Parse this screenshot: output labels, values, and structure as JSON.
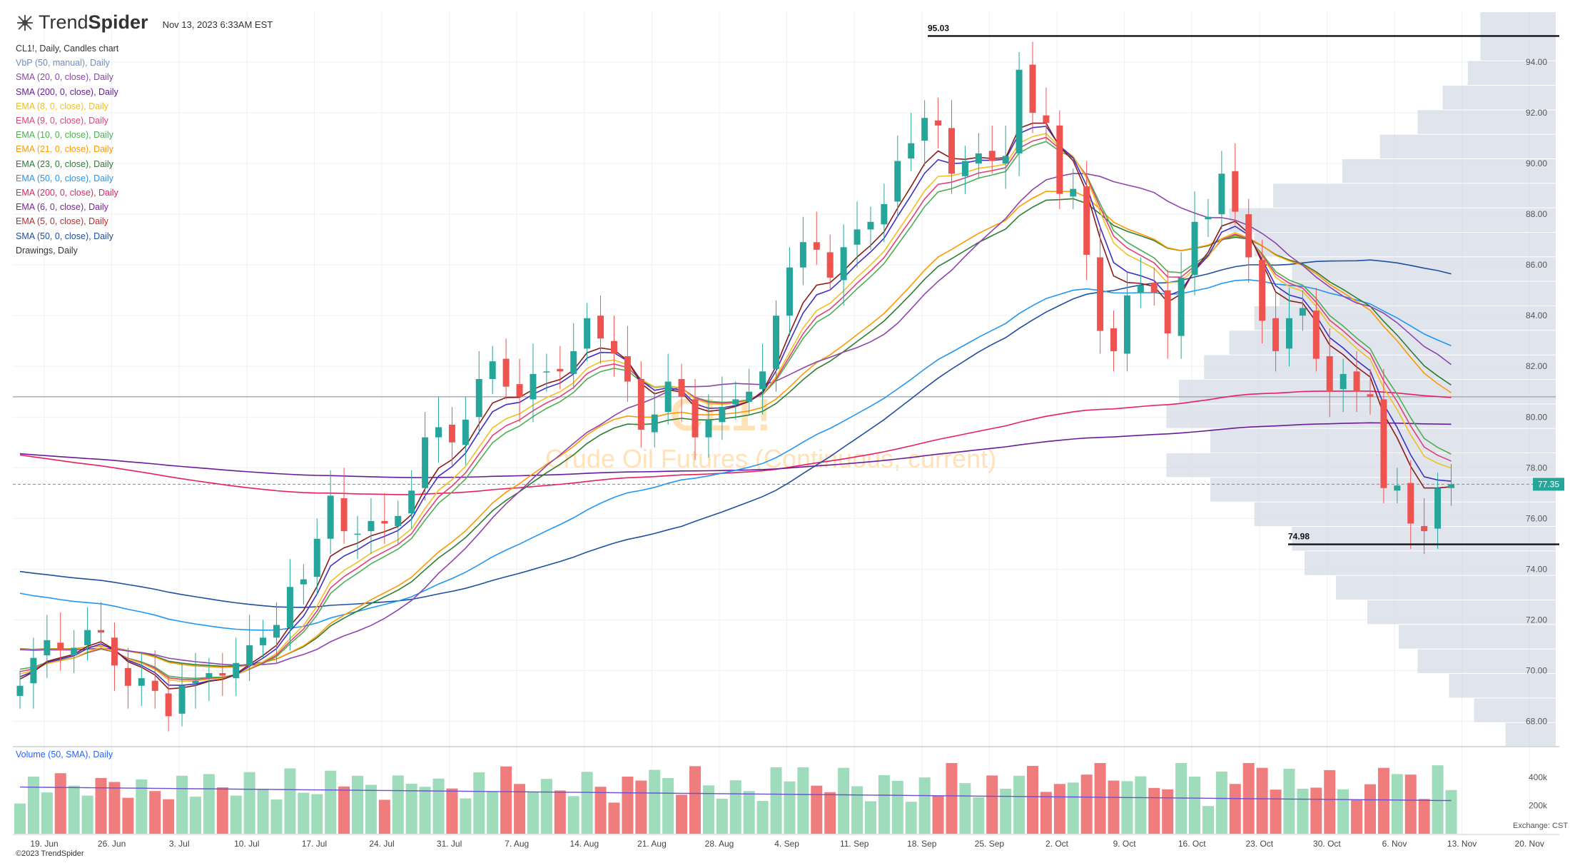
{
  "header": {
    "brand_light": "Trend",
    "brand_bold": "Spider",
    "timestamp": "Nov 13, 2023 6:33AM EST",
    "chart_title": "CL1!, Daily, Candles chart"
  },
  "legend": [
    {
      "label": "VbP (50, manual), Daily",
      "color": "#6f8fbf"
    },
    {
      "label": "SMA (20, 0, close), Daily",
      "color": "#8e44ad"
    },
    {
      "label": "SMA (200, 0, close), Daily",
      "color": "#6a1b9a"
    },
    {
      "label": "EMA (8, 0, close), Daily",
      "color": "#f0c020"
    },
    {
      "label": "EMA (9, 0, close), Daily",
      "color": "#e0407a"
    },
    {
      "label": "EMA (10, 0, close), Daily",
      "color": "#4caf50"
    },
    {
      "label": "EMA (21, 0, close), Daily",
      "color": "#ff9800"
    },
    {
      "label": "EMA (23, 0, close), Daily",
      "color": "#2e7d32"
    },
    {
      "label": "EMA (50, 0, close), Daily",
      "color": "#2196f3"
    },
    {
      "label": "EMA (200, 0, close), Daily",
      "color": "#e91e63"
    },
    {
      "label": "EMA (6, 0, close), Daily",
      "color": "#7b1fa2"
    },
    {
      "label": "EMA (5, 0, close), Daily",
      "color": "#c62828"
    },
    {
      "label": "SMA (50, 0, close), Daily",
      "color": "#1e4fa0"
    },
    {
      "label": "Drawings, Daily",
      "color": "#333333"
    }
  ],
  "watermark": {
    "symbol": "CL1!",
    "name": "Crude Oil Futures (Continuous, current)"
  },
  "volume_label": "Volume (50, SMA), Daily",
  "copyright": "©2023 TrendSpider",
  "exchange_label": "Exchange: CST",
  "colors": {
    "up": "#26a69a",
    "down": "#ef5350",
    "vol_up": "#9fdcbc",
    "vol_down": "#ef7d7d",
    "vbp": "#d6dbe6"
  },
  "chart_data": {
    "type": "candlestick",
    "ylim": [
      67,
      96
    ],
    "y_ticks": [
      "68.00",
      "70.00",
      "72.00",
      "74.00",
      "76.00",
      "78.00",
      "80.00",
      "82.00",
      "84.00",
      "86.00",
      "88.00",
      "90.00",
      "92.00",
      "94.00"
    ],
    "x_tick_labels": [
      "19. Jun",
      "26. Jun",
      "3. Jul",
      "10. Jul",
      "17. Jul",
      "24. Jul",
      "31. Jul",
      "7. Aug",
      "14. Aug",
      "21. Aug",
      "28. Aug",
      "4. Sep",
      "11. Sep",
      "18. Sep",
      "25. Sep",
      "2. Oct",
      "9. Oct",
      "16. Oct",
      "23. Oct",
      "30. Oct",
      "6. Nov",
      "13. Nov",
      "20. Nov"
    ],
    "volume_ticks": [
      "200k",
      "400k"
    ],
    "last_price": "77.35",
    "annotations": [
      {
        "label": "95.03",
        "value": 95.03
      },
      {
        "label": "74.98",
        "value": 74.98
      }
    ],
    "closes": [
      69.4,
      70.5,
      71.2,
      70.8,
      70.9,
      71.6,
      71.5,
      70.2,
      69.4,
      69.7,
      69.2,
      68.2,
      69.4,
      69.6,
      69.9,
      69.8,
      70.3,
      71.0,
      71.3,
      71.8,
      73.3,
      73.6,
      75.2,
      76.9,
      75.5,
      75.4,
      75.9,
      75.8,
      76.1,
      77.1,
      79.2,
      79.6,
      79.0,
      79.9,
      81.5,
      82.2,
      81.2,
      80.8,
      81.7,
      81.8,
      81.8,
      82.6,
      83.9,
      83.1,
      82.5,
      81.4,
      79.5,
      80.1,
      81.4,
      80.8,
      79.2,
      79.9,
      80.4,
      80.7,
      81.0,
      81.8,
      84.0,
      85.9,
      86.9,
      86.6,
      85.5,
      86.7,
      87.4,
      87.7,
      88.4,
      90.1,
      90.8,
      91.8,
      91.5,
      89.6,
      90.1,
      90.4,
      90.1,
      90.3,
      93.7,
      92.0,
      91.6,
      88.8,
      89.0,
      86.4,
      83.4,
      82.6,
      84.8,
      85.2,
      84.9,
      83.3,
      85.5,
      87.7,
      87.9,
      89.6,
      88.1,
      86.3,
      83.8,
      82.6,
      83.9,
      84.3,
      82.3,
      81.0,
      81.7,
      81.0,
      80.8,
      77.2,
      77.3,
      75.8,
      75.5,
      77.2,
      77.35
    ],
    "opens": [
      69.0,
      69.5,
      70.6,
      71.1,
      70.6,
      71.0,
      71.6,
      71.3,
      70.1,
      69.4,
      69.6,
      69.1,
      68.3,
      69.5,
      69.7,
      69.9,
      69.7,
      70.2,
      71.0,
      71.3,
      71.7,
      73.4,
      73.7,
      75.2,
      76.8,
      75.4,
      75.5,
      75.9,
      75.7,
      76.2,
      77.2,
      79.2,
      79.7,
      78.9,
      80.0,
      81.5,
      82.3,
      81.3,
      80.7,
      81.8,
      81.9,
      81.7,
      82.7,
      84.0,
      83.0,
      82.4,
      81.5,
      79.4,
      80.2,
      81.5,
      80.7,
      79.2,
      79.8,
      80.5,
      80.6,
      81.1,
      81.9,
      84.0,
      85.9,
      86.9,
      86.5,
      85.4,
      86.8,
      87.4,
      87.6,
      88.5,
      90.2,
      90.9,
      91.7,
      91.4,
      89.5,
      90.0,
      90.5,
      90.0,
      90.4,
      93.9,
      91.9,
      91.5,
      88.7,
      89.1,
      86.3,
      83.5,
      82.5,
      84.9,
      85.3,
      85.0,
      83.2,
      85.6,
      87.8,
      88.0,
      89.7,
      88.0,
      86.2,
      83.9,
      82.7,
      84.0,
      84.2,
      82.4,
      81.1,
      81.8,
      80.9,
      80.7,
      77.1,
      77.4,
      75.7,
      75.6,
      77.2
    ]
  }
}
